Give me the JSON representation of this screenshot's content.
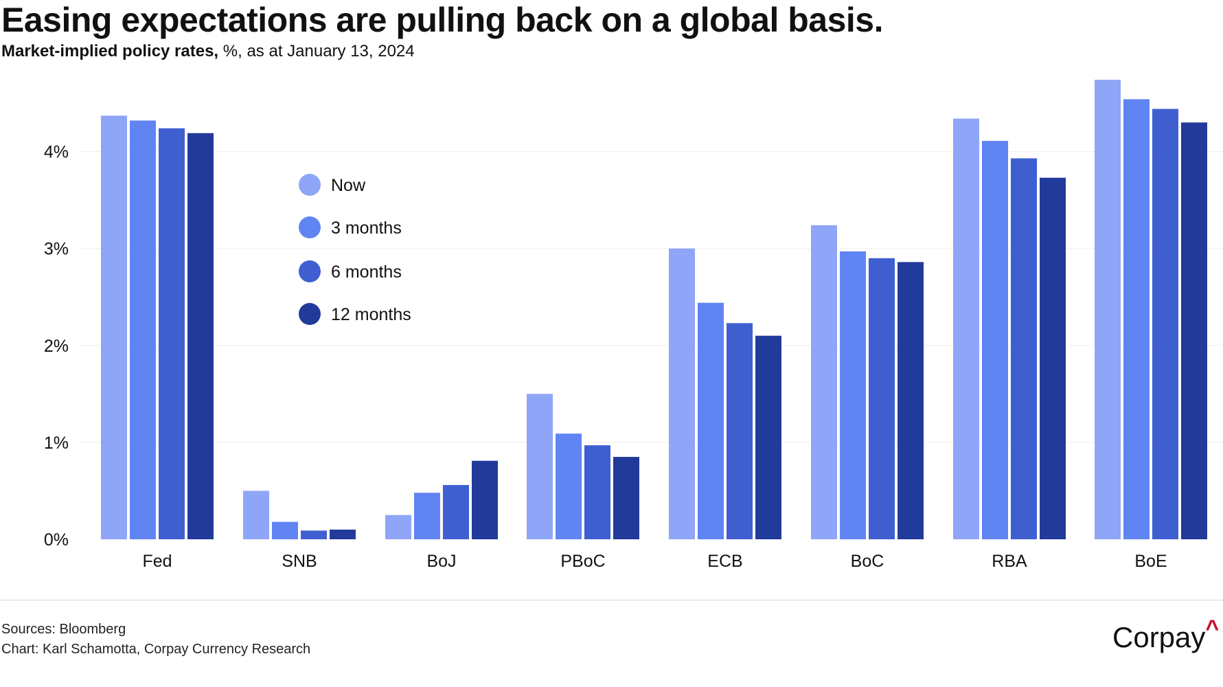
{
  "title": "Easing expectations are pulling back on a global basis.",
  "subtitle_bold": "Market-implied policy rates,",
  "subtitle_rest": " %, as at January 13, 2024",
  "footer": {
    "sources": "Sources: Bloomberg",
    "credit": "Chart: Karl Schamotta, Corpay Currency Research"
  },
  "logo": "Corpay",
  "chart_data": {
    "type": "bar",
    "categories": [
      "Fed",
      "SNB",
      "BoJ",
      "PBoC",
      "ECB",
      "BoC",
      "RBA",
      "BoE"
    ],
    "series": [
      {
        "name": "Now",
        "color": "#8fa5f7",
        "values": [
          4.37,
          0.5,
          0.25,
          1.5,
          3.0,
          3.24,
          4.34,
          4.74
        ]
      },
      {
        "name": "3 months",
        "color": "#6184f3",
        "values": [
          4.32,
          0.18,
          0.48,
          1.09,
          2.44,
          2.97,
          4.11,
          4.54
        ]
      },
      {
        "name": "6 months",
        "color": "#3f5fd1",
        "values": [
          4.24,
          0.09,
          0.56,
          0.97,
          2.23,
          2.9,
          3.93,
          4.44
        ]
      },
      {
        "name": "12 months",
        "color": "#223a9a",
        "values": [
          4.19,
          0.1,
          0.81,
          0.85,
          2.1,
          2.86,
          3.73,
          4.3
        ]
      }
    ],
    "yticks": [
      "0%",
      "1%",
      "2%",
      "3%",
      "4%"
    ],
    "ytick_values": [
      0,
      1,
      2,
      3,
      4
    ],
    "ylim": [
      0,
      4.8
    ],
    "grid": true,
    "legend": "upper-left inside"
  }
}
